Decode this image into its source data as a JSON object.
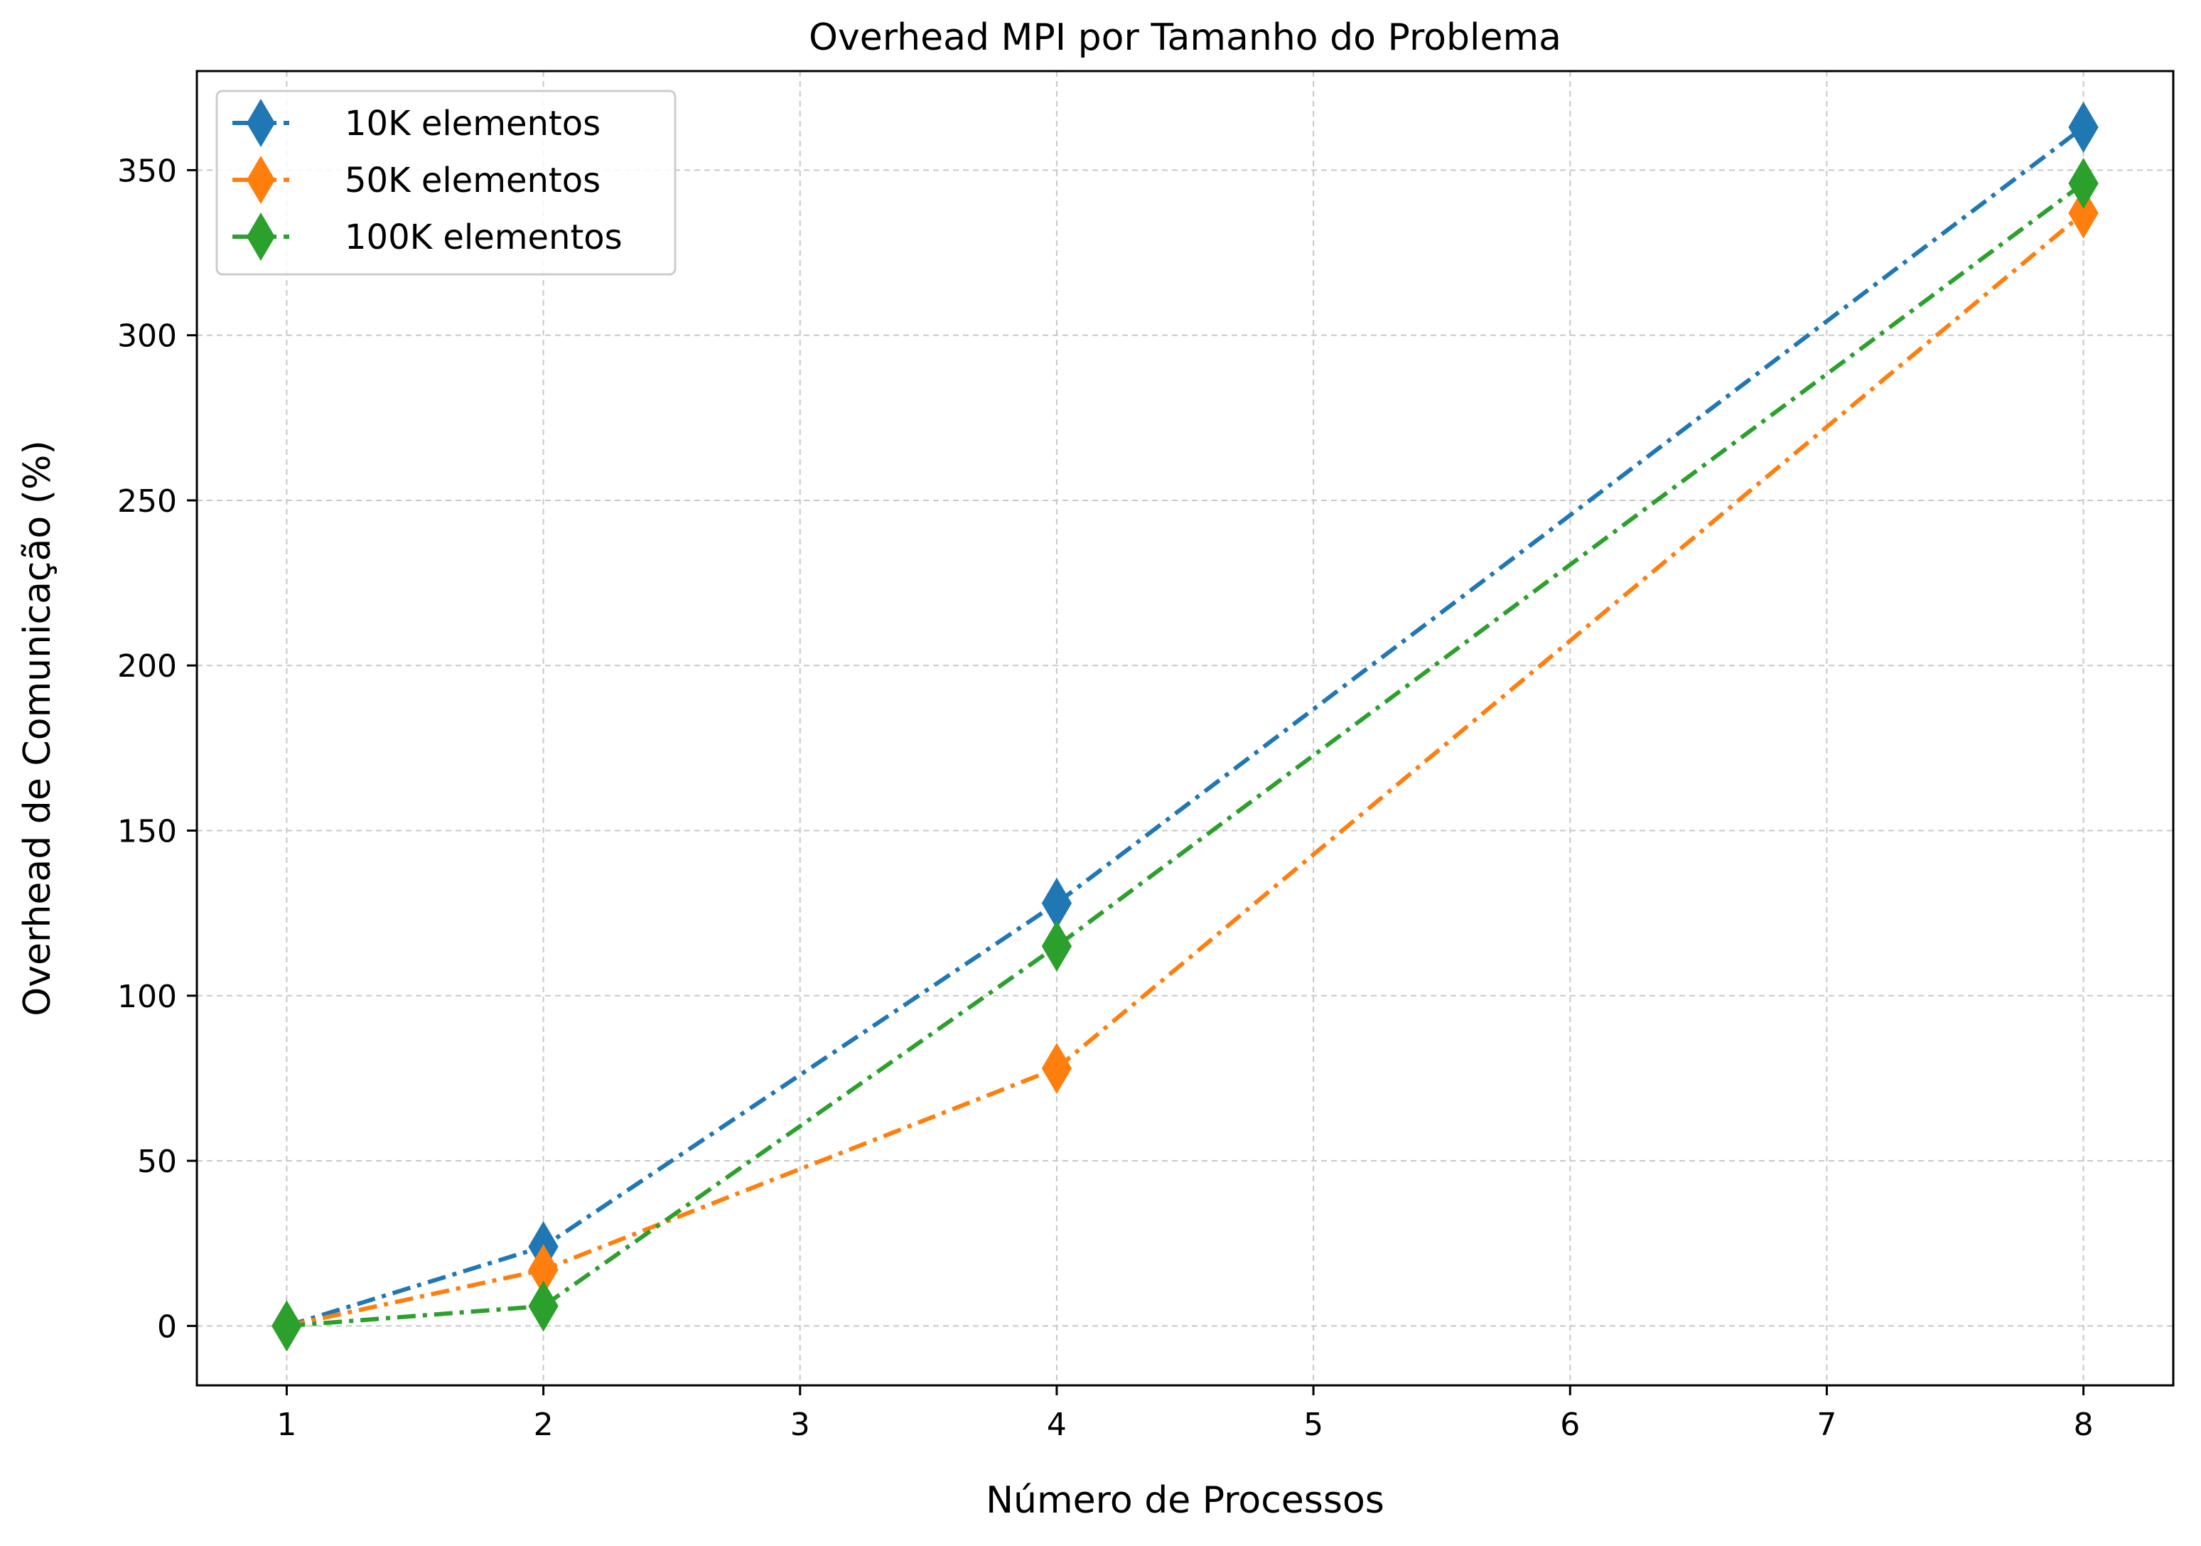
{
  "chart_data": {
    "type": "line",
    "title": "Overhead MPI por Tamanho do Problema",
    "xlabel": "Número de Processos",
    "ylabel": "Overhead de Comunicação (%)",
    "xlim": [
      0.65,
      8.35
    ],
    "ylim": [
      -18,
      380
    ],
    "xticks": [
      1,
      2,
      3,
      4,
      5,
      6,
      7,
      8
    ],
    "yticks": [
      0,
      50,
      100,
      150,
      200,
      250,
      300,
      350
    ],
    "grid": true,
    "legend_position": "top-left",
    "series": [
      {
        "name": "10K elementos",
        "color": "#1f77b4",
        "x": [
          1,
          2,
          4,
          8
        ],
        "values": [
          0,
          24,
          128,
          363
        ]
      },
      {
        "name": "50K elementos",
        "color": "#ff7f0e",
        "x": [
          1,
          2,
          4,
          8
        ],
        "values": [
          0,
          17,
          78,
          337
        ]
      },
      {
        "name": "100K elementos",
        "color": "#2ca02c",
        "x": [
          1,
          2,
          4,
          8
        ],
        "values": [
          0,
          6,
          115,
          346
        ]
      }
    ]
  }
}
